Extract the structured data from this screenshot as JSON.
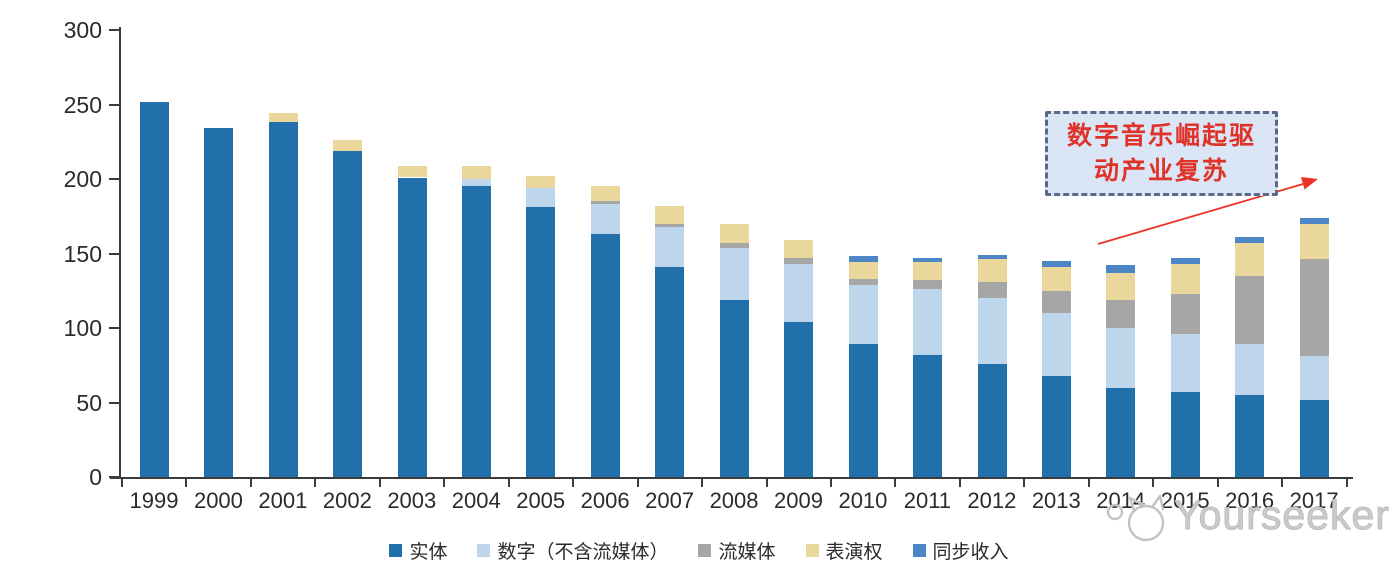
{
  "chart_data": {
    "type": "bar",
    "stacked": true,
    "categories": [
      "1999",
      "2000",
      "2001",
      "2002",
      "2003",
      "2004",
      "2005",
      "2006",
      "2007",
      "2008",
      "2009",
      "2010",
      "2011",
      "2012",
      "2013",
      "2014",
      "2015",
      "2016",
      "2017"
    ],
    "series": [
      {
        "name": "实体",
        "color": "#216fab",
        "values": [
          252,
          234,
          238,
          219,
          201,
          195,
          181,
          163,
          141,
          119,
          104,
          89,
          82,
          76,
          68,
          60,
          57,
          55,
          52
        ]
      },
      {
        "name": "数字（不含流媒体）",
        "color": "#bdd6ec",
        "values": [
          0,
          0,
          0,
          0,
          0,
          5,
          13,
          20,
          27,
          35,
          39,
          40,
          44,
          44,
          42,
          40,
          39,
          34,
          29
        ]
      },
      {
        "name": "流媒体",
        "color": "#a6a6a6",
        "values": [
          0,
          0,
          0,
          0,
          0,
          0,
          0,
          2,
          2,
          3,
          4,
          4,
          6,
          11,
          15,
          19,
          27,
          46,
          65
        ]
      },
      {
        "name": "表演权",
        "color": "#e9d79c",
        "values": [
          0,
          0,
          6,
          7,
          8,
          9,
          8,
          10,
          12,
          13,
          12,
          11,
          12,
          15,
          16,
          18,
          20,
          22,
          24
        ]
      },
      {
        "name": "同步收入",
        "color": "#4d86c4",
        "values": [
          0,
          0,
          0,
          0,
          0,
          0,
          0,
          0,
          0,
          0,
          0,
          4,
          3,
          3,
          4,
          5,
          4,
          4,
          4
        ]
      }
    ],
    "ylim": [
      0,
      300
    ],
    "yticks": [
      0,
      50,
      100,
      150,
      200,
      250,
      300
    ],
    "xlabel": "",
    "ylabel": "",
    "title": "",
    "grid": false,
    "legend_position": "bottom"
  },
  "annotation": {
    "line1": "数字音乐崛起驱",
    "line2": "动产业复苏",
    "text_color": "#e03228",
    "box_fill": "#dae6f5",
    "box_border": "#5a6987",
    "arrow_color": "#ec3323"
  },
  "watermark": {
    "text": "Yourseeker",
    "logo": "cat-logo",
    "color": "#cbcbcb"
  }
}
